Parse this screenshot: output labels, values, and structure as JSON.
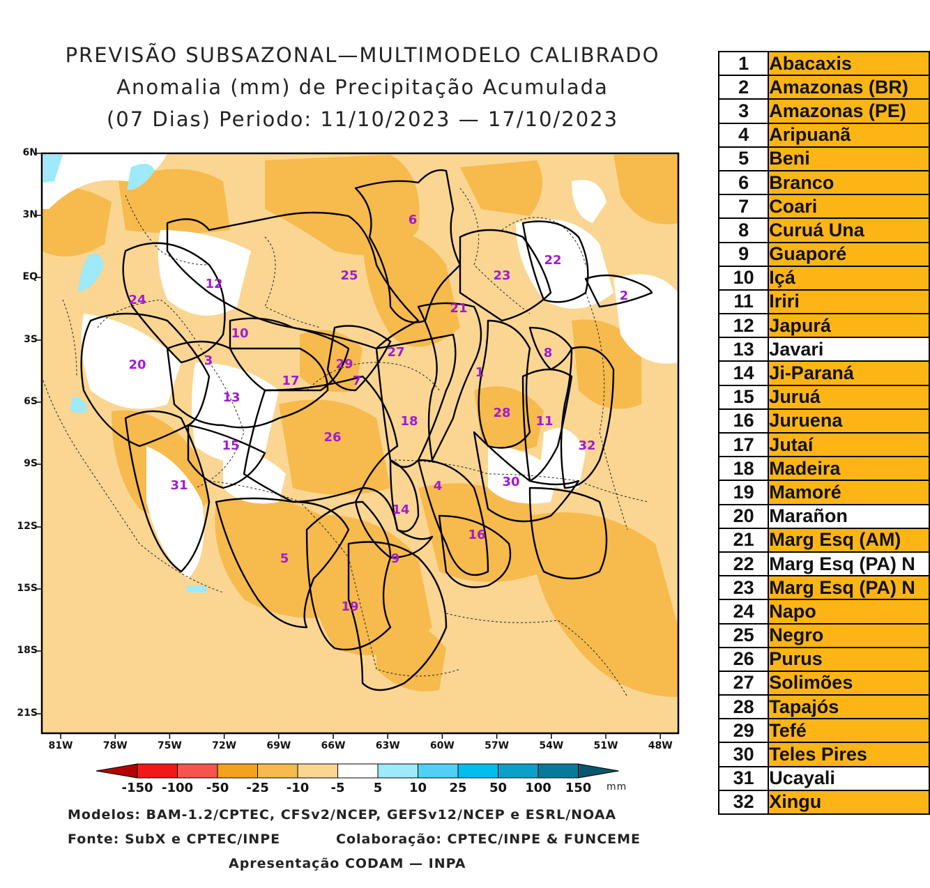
{
  "title": {
    "line1": "PREVISÃO SUBSAZONAL—MULTIMODELO CALIBRADO",
    "line2": "Anomalia (mm) de Precipitação Acumulada",
    "line3": "(07 Dias) Periodo: 11/10/2023 — 17/10/2023"
  },
  "axes": {
    "lat": [
      "6N",
      "3N",
      "EQ",
      "3S",
      "6S",
      "9S",
      "12S",
      "15S",
      "18S",
      "21S"
    ],
    "lon": [
      "81W",
      "78W",
      "75W",
      "72W",
      "69W",
      "66W",
      "63W",
      "60W",
      "57W",
      "54W",
      "51W",
      "48W"
    ]
  },
  "colorbar": {
    "labels": [
      "-150",
      "-100",
      "-50",
      "-25",
      "-10",
      "-5",
      "5",
      "10",
      "25",
      "50",
      "100",
      "150"
    ],
    "unit": "mm",
    "colors": [
      "#b30000",
      "#f01818",
      "#f5554a",
      "#f4a11e",
      "#f7ba4d",
      "#fad692",
      "#ffffff",
      "#9ee9fa",
      "#4fd1f5",
      "#00bfee",
      "#0aa0c8",
      "#067a99",
      "#06566e"
    ]
  },
  "credits": {
    "models": "Modelos: BAM-1.2/CPTEC, CFSv2/NCEP, GEFSv12/NCEP e ESRL/NOAA",
    "source": "Fonte: SubX e CPTEC/INPE",
    "collab": "Colaboração: CPTEC/INPE & FUNCEME",
    "presentation": "Apresentação CODAM — INPA"
  },
  "region_numbers": [
    "1",
    "2",
    "3",
    "4",
    "5",
    "6",
    "7",
    "8",
    "9",
    "10",
    "11",
    "12",
    "13",
    "14",
    "15",
    "16",
    "17",
    "18",
    "19",
    "20",
    "21",
    "22",
    "23",
    "24",
    "25",
    "26",
    "27",
    "28",
    "29",
    "30",
    "31",
    "32"
  ],
  "legend": [
    {
      "n": "1",
      "name": "Abacaxis",
      "color": "orange"
    },
    {
      "n": "2",
      "name": "Amazonas (BR)",
      "color": "orange"
    },
    {
      "n": "3",
      "name": "Amazonas (PE)",
      "color": "orange"
    },
    {
      "n": "4",
      "name": "Aripuanã",
      "color": "orange"
    },
    {
      "n": "5",
      "name": "Beni",
      "color": "orange"
    },
    {
      "n": "6",
      "name": "Branco",
      "color": "orange"
    },
    {
      "n": "7",
      "name": "Coari",
      "color": "orange"
    },
    {
      "n": "8",
      "name": "Curuá Una",
      "color": "orange"
    },
    {
      "n": "9",
      "name": "Guaporé",
      "color": "orange"
    },
    {
      "n": "10",
      "name": "Içá",
      "color": "orange"
    },
    {
      "n": "11",
      "name": "Iriri",
      "color": "orange"
    },
    {
      "n": "12",
      "name": "Japurá",
      "color": "orange"
    },
    {
      "n": "13",
      "name": "Javari",
      "color": "white"
    },
    {
      "n": "14",
      "name": "Ji-Paraná",
      "color": "orange"
    },
    {
      "n": "15",
      "name": "Juruá",
      "color": "orange"
    },
    {
      "n": "16",
      "name": "Juruena",
      "color": "orange"
    },
    {
      "n": "17",
      "name": "Jutaí",
      "color": "orange"
    },
    {
      "n": "18",
      "name": "Madeira",
      "color": "orange"
    },
    {
      "n": "19",
      "name": "Mamoré",
      "color": "orange"
    },
    {
      "n": "20",
      "name": "Marañon",
      "color": "white"
    },
    {
      "n": "21",
      "name": "Marg Esq (AM)",
      "color": "orange"
    },
    {
      "n": "22",
      "name": "Marg Esq (PA) N",
      "color": "white"
    },
    {
      "n": "23",
      "name": "Marg Esq (PA) N",
      "color": "orange"
    },
    {
      "n": "24",
      "name": "Napo",
      "color": "orange"
    },
    {
      "n": "25",
      "name": "Negro",
      "color": "orange"
    },
    {
      "n": "26",
      "name": "Purus",
      "color": "orange"
    },
    {
      "n": "27",
      "name": "Solimões",
      "color": "orange"
    },
    {
      "n": "28",
      "name": "Tapajós",
      "color": "orange"
    },
    {
      "n": "29",
      "name": "Tefé",
      "color": "orange"
    },
    {
      "n": "30",
      "name": "Teles Pires",
      "color": "orange"
    },
    {
      "n": "31",
      "name": "Ucayali",
      "color": "white"
    },
    {
      "n": "32",
      "name": "Xingu",
      "color": "orange"
    }
  ]
}
